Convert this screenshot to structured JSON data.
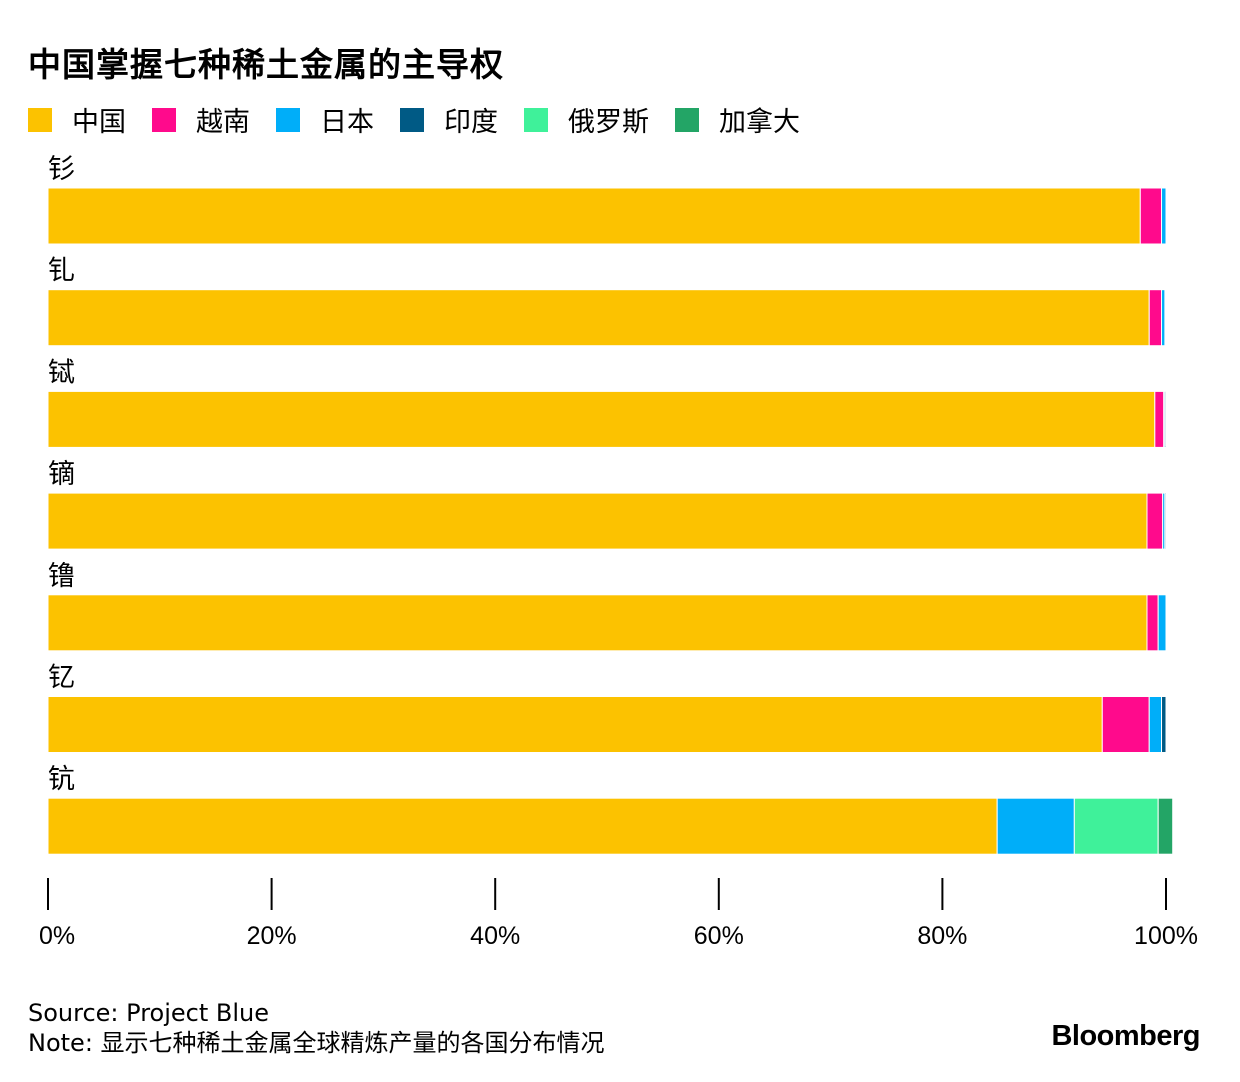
{
  "header": {
    "title": "中国掌握七种稀土金属的主导权"
  },
  "chart_data": {
    "type": "bar",
    "orientation": "horizontal",
    "stacked": true,
    "title": "中国掌握七种稀土金属的主导权",
    "xlabel": "",
    "ylabel": "",
    "xlim": [
      0,
      100
    ],
    "x_ticks": [
      0,
      20,
      40,
      60,
      80,
      100
    ],
    "x_tick_labels": [
      "0%",
      "20%",
      "40%",
      "60%",
      "80%",
      "100%"
    ],
    "categories": [
      "钐",
      "钆",
      "铽",
      "镝",
      "镥",
      "钇",
      "钪"
    ],
    "series": [
      {
        "name": "中国",
        "color": "#FCC200",
        "values": [
          97.7,
          98.5,
          99.0,
          98.3,
          98.3,
          94.3,
          84.9
        ]
      },
      {
        "name": "越南",
        "color": "#FF0A8C",
        "values": [
          1.9,
          1.1,
          0.8,
          1.4,
          1.0,
          4.2,
          0.0
        ]
      },
      {
        "name": "日本",
        "color": "#00AEF9",
        "values": [
          0.4,
          0.3,
          0.1,
          0.2,
          0.7,
          1.1,
          6.9
        ]
      },
      {
        "name": "印度",
        "color": "#005A85",
        "values": [
          0.0,
          0.0,
          0.1,
          0.1,
          0.0,
          0.4,
          0.0
        ]
      },
      {
        "name": "俄罗斯",
        "color": "#3FF19A",
        "values": [
          0.0,
          0.0,
          0.0,
          0.0,
          0.0,
          0.0,
          7.5
        ]
      },
      {
        "name": "加拿大",
        "color": "#23A566",
        "values": [
          0.0,
          0.0,
          0.0,
          0.0,
          0.0,
          0.0,
          1.3
        ]
      }
    ]
  },
  "footer": {
    "source": "Source: Project Blue",
    "note": "Note: 显示七种稀土金属全球精炼产量的各国分布情况",
    "brand": "Bloomberg"
  }
}
